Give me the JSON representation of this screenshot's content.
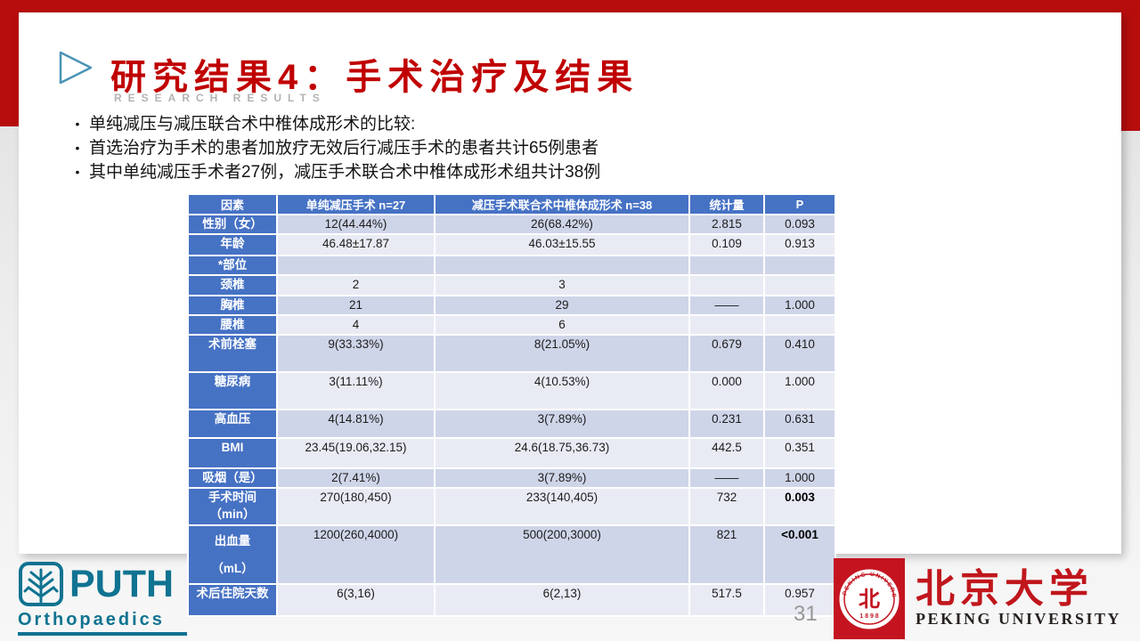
{
  "colors": {
    "frame_red": "#b70d0d",
    "title_red": "#c00000",
    "table_header_blue": "#4672c4",
    "band_dark": "#cfd5e8",
    "band_light": "#e9ebf4",
    "puth_teal": "#0f7391",
    "pku_red": "#c41420",
    "subtitle_gray": "#b3b3b3"
  },
  "slide": {
    "title": "研究结果4：手术治疗及结果",
    "subtitle": "RESEARCH RESULTS",
    "page_number": "31",
    "bullets": [
      "单纯减压与减压联合术中椎体成形术的比较:",
      "首选治疗为手术的患者加放疗无效后行减压手术的患者共计65例患者",
      "其中单纯减压手术者27例，减压手术联合术中椎体成形术组共计38例"
    ]
  },
  "table": {
    "headers": [
      "因素",
      "单纯减压手术 n=27",
      "减压手术联合术中椎体成形术 n=38",
      "统计量",
      "P"
    ],
    "rows": [
      {
        "label": "性别（女）",
        "c1": "12(44.44%)",
        "c2": "26(68.42%)",
        "stat": "2.815",
        "p": "0.093"
      },
      {
        "label": "年龄",
        "c1": "46.48±17.87",
        "c2": "46.03±15.55",
        "stat": "0.109",
        "p": "0.913"
      },
      {
        "label": "*部位",
        "c1": "",
        "c2": "",
        "stat": "",
        "p": ""
      },
      {
        "label": "颈椎",
        "c1": "2",
        "c2": "3",
        "stat": "",
        "p": ""
      },
      {
        "label": "胸椎",
        "c1": "21",
        "c2": "29",
        "stat": "——",
        "p": "1.000"
      },
      {
        "label": "腰椎",
        "c1": "4",
        "c2": "6",
        "stat": "",
        "p": ""
      },
      {
        "label": "术前栓塞",
        "c1": "9(33.33%)",
        "c2": "8(21.05%)",
        "stat": "0.679",
        "p": "0.410"
      },
      {
        "label": "糖尿病",
        "c1": "3(11.11%)",
        "c2": "4(10.53%)",
        "stat": "0.000",
        "p": "1.000"
      },
      {
        "label": "高血压",
        "c1": "4(14.81%)",
        "c2": "3(7.89%)",
        "stat": "0.231",
        "p": "0.631"
      },
      {
        "label": "BMI",
        "c1": "23.45(19.06,32.15)",
        "c2": "24.6(18.75,36.73)",
        "stat": "442.5",
        "p": "0.351"
      },
      {
        "label": "吸烟（是）",
        "c1": "2(7.41%)",
        "c2": "3(7.89%)",
        "stat": "——",
        "p": "1.000"
      },
      {
        "label": "手术时间\n（min）",
        "c1": "270(180,450)",
        "c2": "233(140,405)",
        "stat": "732",
        "p": "0.003",
        "p_bold": true
      },
      {
        "label": "出血量\n（mL）",
        "c1": "1200(260,4000)",
        "c2": "500(200,3000)",
        "stat": "821",
        "p": "<0.001",
        "p_bold": true
      },
      {
        "label": "术后住院天数",
        "c1": "6(3,16)",
        "c2": "6(2,13)",
        "stat": "517.5",
        "p": "0.957"
      }
    ]
  },
  "footer": {
    "puth": {
      "name": "PUTH",
      "sub": "Orthopaedics"
    },
    "pku": {
      "cn": "北京大学",
      "en": "PEKING UNIVERSITY",
      "seal_glyph": "北",
      "seal_year": "1898",
      "seal_ring_text": "PEKING UNIVERSITY"
    }
  }
}
